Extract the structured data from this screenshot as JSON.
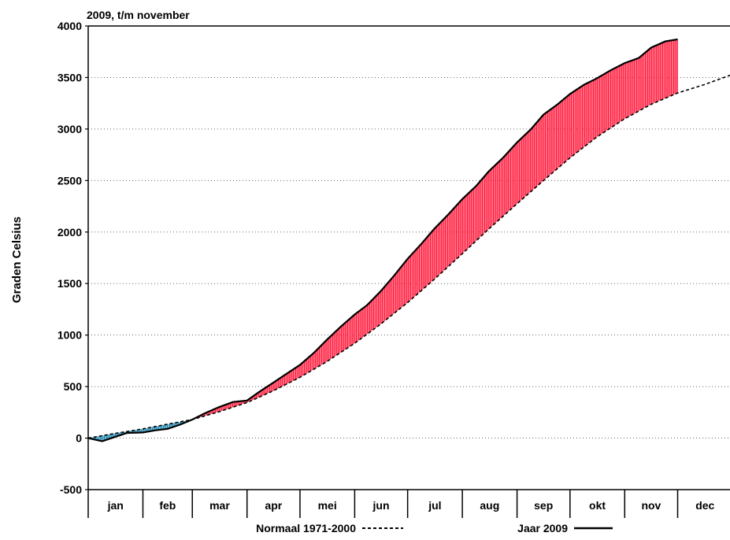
{
  "chart_data": {
    "type": "line",
    "title": "2009, t/m november",
    "ylabel": "Graden Celsius",
    "xlabel": "",
    "ylim": [
      -500,
      4000
    ],
    "yticks": [
      -500,
      0,
      500,
      1000,
      1500,
      2000,
      2500,
      3000,
      3500,
      4000
    ],
    "xlim": [
      0,
      365
    ],
    "month_starts": [
      0,
      31,
      59,
      90,
      120,
      151,
      181,
      212,
      243,
      273,
      304,
      334,
      365
    ],
    "months": [
      "jan",
      "feb",
      "mar",
      "apr",
      "mei",
      "jun",
      "jul",
      "aug",
      "sep",
      "okt",
      "nov",
      "dec"
    ],
    "grid": "horizontal-dotted",
    "fill": {
      "above_normal": "#ff1a3c",
      "below_normal": "#1e88b4"
    },
    "series": [
      {
        "name": "Normaal 1971-2000",
        "style": "dashed",
        "x": [
          0,
          15,
          31,
          45,
          59,
          74,
          90,
          105,
          120,
          135,
          151,
          166,
          181,
          196,
          212,
          227,
          243,
          258,
          273,
          288,
          304,
          319,
          334,
          349,
          365
        ],
        "y": [
          0,
          45,
          90,
          135,
          180,
          255,
          345,
          460,
          590,
          740,
          920,
          1110,
          1315,
          1540,
          1790,
          2030,
          2275,
          2500,
          2720,
          2920,
          3100,
          3240,
          3350,
          3430,
          3530
        ]
      },
      {
        "name": "Jaar 2009",
        "style": "solid",
        "x": [
          0,
          8,
          15,
          22,
          31,
          38,
          45,
          52,
          59,
          66,
          74,
          82,
          90,
          97,
          105,
          112,
          120,
          128,
          135,
          143,
          151,
          158,
          166,
          173,
          181,
          189,
          196,
          204,
          212,
          220,
          227,
          235,
          243,
          251,
          258,
          266,
          273,
          281,
          288,
          296,
          304,
          312,
          319,
          327,
          334
        ],
        "y": [
          0,
          -30,
          10,
          50,
          55,
          75,
          90,
          130,
          180,
          240,
          300,
          350,
          365,
          450,
          540,
          620,
          710,
          830,
          950,
          1080,
          1200,
          1290,
          1430,
          1570,
          1740,
          1890,
          2030,
          2170,
          2320,
          2450,
          2590,
          2720,
          2870,
          3000,
          3140,
          3240,
          3340,
          3430,
          3490,
          3570,
          3640,
          3690,
          3790,
          3850,
          3870
        ]
      }
    ],
    "legend": {
      "position": "bottom",
      "items": [
        {
          "label": "Normaal 1971-2000",
          "style": "dashed"
        },
        {
          "label": "Jaar 2009",
          "style": "solid"
        }
      ]
    }
  }
}
